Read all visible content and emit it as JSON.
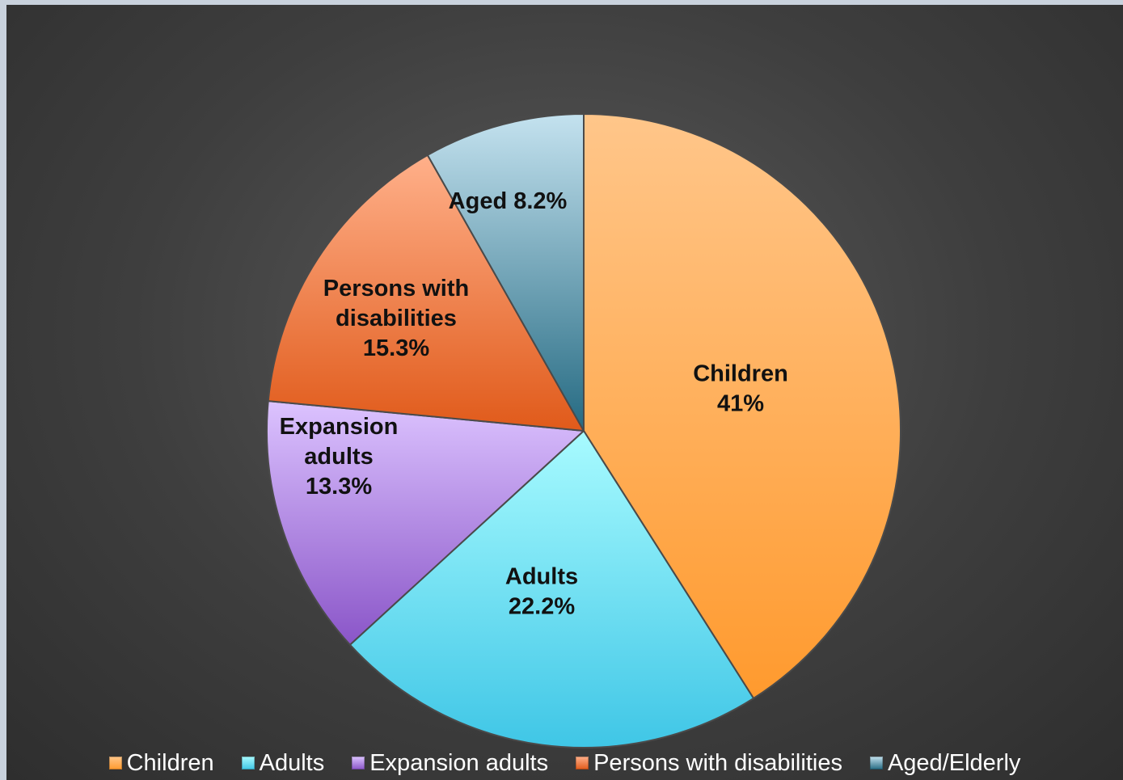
{
  "chart_data": {
    "type": "pie",
    "title": "",
    "categories": [
      "Children",
      "Adults",
      "Expansion adults",
      "Persons with disabilities",
      "Aged/Elderly"
    ],
    "values": [
      41,
      22.2,
      13.3,
      15.3,
      8.2
    ],
    "unit": "%",
    "slice_labels": [
      {
        "lines": [
          "Children",
          "41%"
        ]
      },
      {
        "lines": [
          "Adults",
          "22.2%"
        ]
      },
      {
        "lines": [
          "Expansion",
          "adults",
          "13.3%"
        ]
      },
      {
        "lines": [
          "Persons with",
          "disabilities",
          "15.3%"
        ]
      },
      {
        "lines": [
          "Aged 8.2%"
        ]
      }
    ],
    "colors": [
      {
        "light": "#ffc68a",
        "dark": "#ff9a2e"
      },
      {
        "light": "#a8fbff",
        "dark": "#3fc6e6"
      },
      {
        "light": "#dcc3ff",
        "dark": "#8a55c8"
      },
      {
        "light": "#ffb08a",
        "dark": "#e05a1a"
      },
      {
        "light": "#c4e2ef",
        "dark": "#256a82"
      }
    ],
    "start_angle_deg": 0,
    "direction": "clockwise",
    "legend": {
      "position": "bottom",
      "entries": [
        "Children",
        "Adults",
        "Expansion adults",
        "Persons with disabilities",
        "Aged/Elderly"
      ]
    }
  }
}
